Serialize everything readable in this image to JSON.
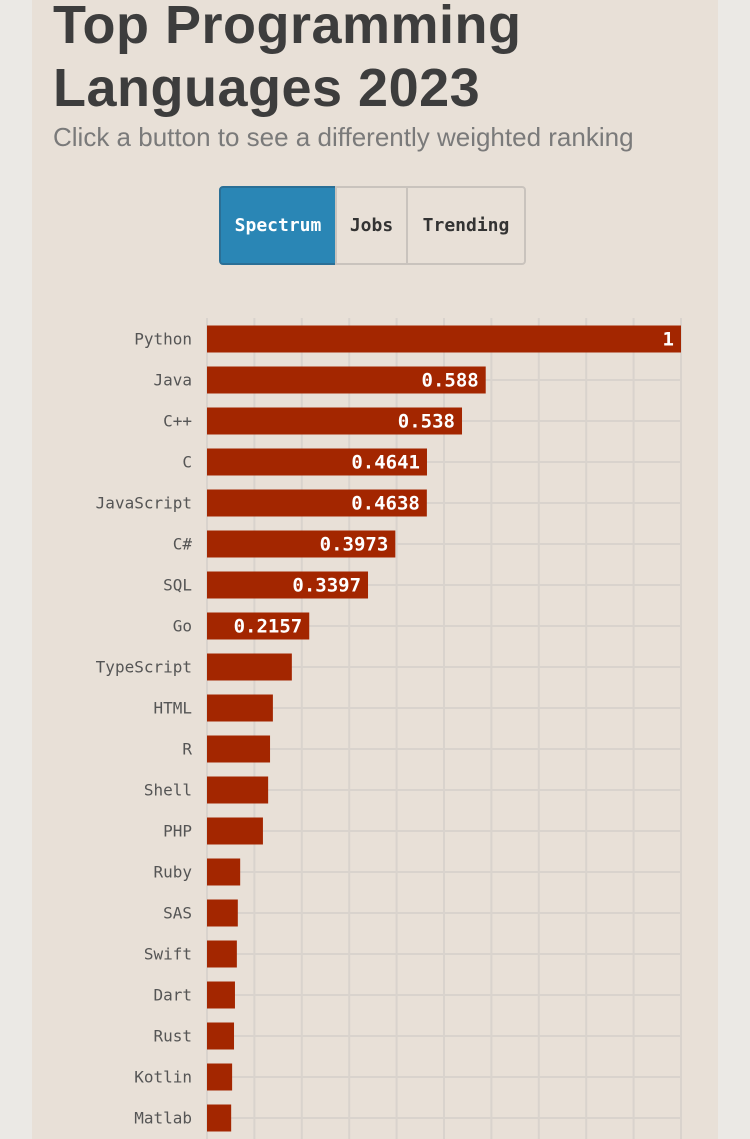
{
  "header": {
    "title": "Top Programming Languages 2023",
    "subtitle": "Click a button to see a differently weighted ranking"
  },
  "buttons": [
    {
      "label": "Spectrum",
      "active": true
    },
    {
      "label": "Jobs",
      "active": false
    },
    {
      "label": "Trending",
      "active": false
    }
  ],
  "chart_data": {
    "type": "bar",
    "orientation": "horizontal",
    "categories": [
      "Python",
      "Java",
      "C++",
      "C",
      "JavaScript",
      "C#",
      "SQL",
      "Go",
      "TypeScript",
      "HTML",
      "R",
      "Shell",
      "PHP",
      "Ruby",
      "SAS",
      "Swift",
      "Dart",
      "Rust",
      "Kotlin",
      "Matlab"
    ],
    "values": [
      1,
      0.588,
      0.538,
      0.4641,
      0.4638,
      0.3973,
      0.3397,
      0.2157,
      0.179,
      0.139,
      0.133,
      0.129,
      0.118,
      0.07,
      0.065,
      0.063,
      0.059,
      0.057,
      0.053,
      0.051
    ],
    "value_labels": [
      "1",
      "0.588",
      "0.538",
      "0.4641",
      "0.4638",
      "0.3973",
      "0.3397",
      "0.2157",
      null,
      null,
      null,
      null,
      null,
      null,
      null,
      null,
      null,
      null,
      null,
      null
    ],
    "color": "#a32600",
    "xlim": [
      0,
      1
    ],
    "xticks": [
      0,
      0.1,
      0.2,
      0.3,
      0.4,
      0.5,
      0.6,
      0.7,
      0.8,
      0.9,
      1
    ],
    "grid": true
  }
}
